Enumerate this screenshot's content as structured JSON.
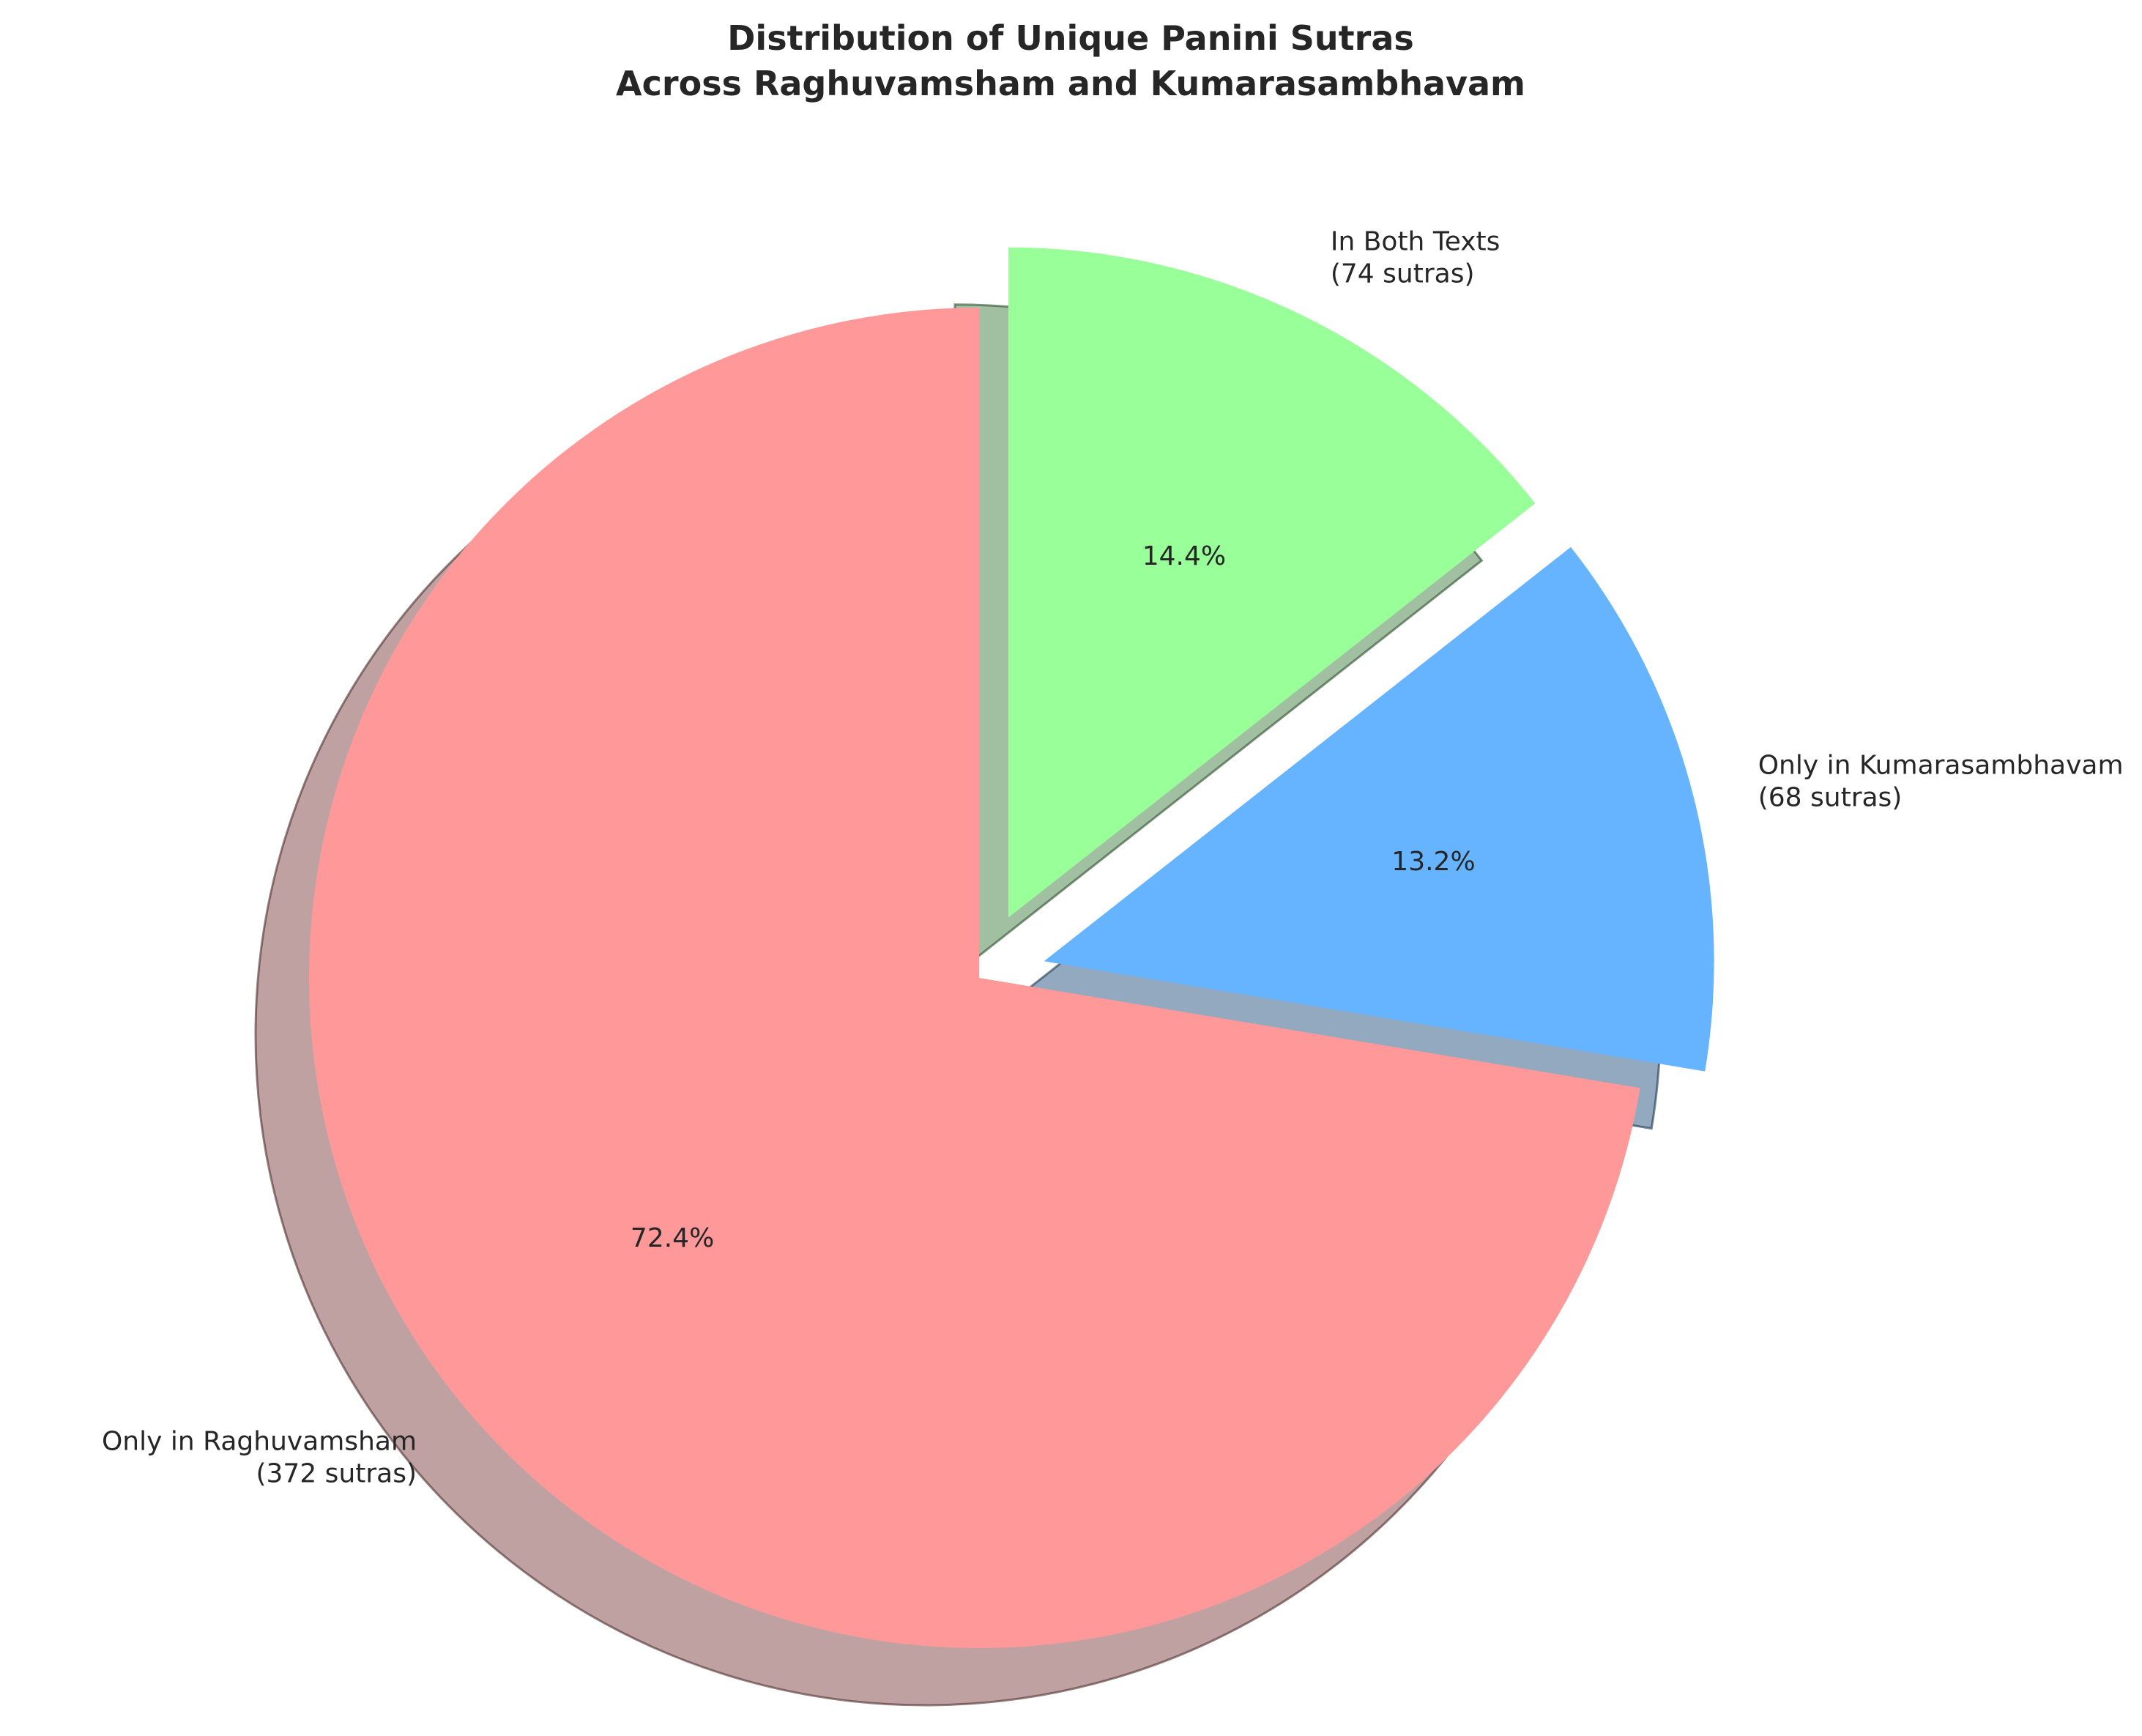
{
  "chart_data": {
    "type": "pie",
    "title_lines": [
      "Distribution of Unique Panini Sutras",
      "Across Raghuvamsham and Kumarasambhavam"
    ],
    "slices": [
      {
        "name": "Only in Raghuvamsham",
        "count_label": "(372 sutras)",
        "value": 372,
        "percent_label": "72.4%",
        "color": "#ff9999",
        "exploded": false
      },
      {
        "name": "Only in Kumarasambhavam",
        "count_label": "(68 sutras)",
        "value": 68,
        "percent_label": "13.2%",
        "color": "#66b3ff",
        "exploded": true
      },
      {
        "name": "In Both Texts",
        "count_label": "(74 sutras)",
        "value": 74,
        "percent_label": "14.4%",
        "color": "#99ff99",
        "exploded": true
      }
    ],
    "start_angle_deg": 90,
    "direction": "counterclockwise",
    "shadow": true,
    "legend": "none"
  }
}
